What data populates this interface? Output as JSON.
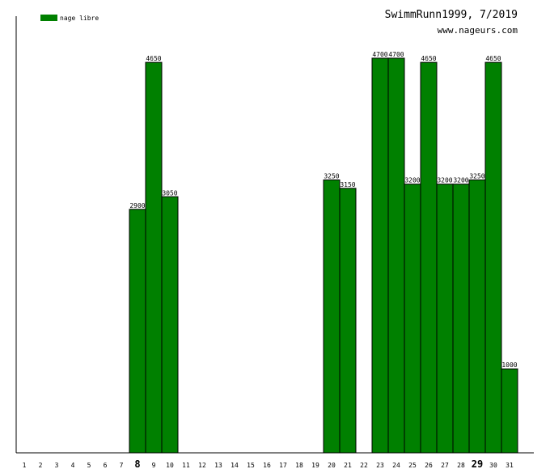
{
  "chart_data": {
    "type": "bar",
    "title": "SwimmRunn1999, 7/2019",
    "subtitle": "www.nageurs.com",
    "legend": {
      "placement": "top-left",
      "entries": [
        {
          "name": "nage libre",
          "color": "#008000"
        }
      ]
    },
    "xlabel": "",
    "ylabel": "",
    "grid": false,
    "ylim": [
      0,
      5200
    ],
    "categories": [
      "1",
      "2",
      "3",
      "4",
      "5",
      "6",
      "7",
      "8",
      "9",
      "10",
      "11",
      "12",
      "13",
      "14",
      "15",
      "16",
      "17",
      "18",
      "19",
      "20",
      "21",
      "22",
      "23",
      "24",
      "25",
      "26",
      "27",
      "28",
      "29",
      "30",
      "31"
    ],
    "highlighted_categories": [
      "8",
      "29"
    ],
    "series": [
      {
        "name": "nage libre",
        "color": "#008000",
        "values": [
          0,
          0,
          0,
          0,
          0,
          0,
          0,
          2900,
          4650,
          3050,
          0,
          0,
          0,
          0,
          0,
          0,
          0,
          0,
          0,
          3250,
          3150,
          0,
          4700,
          4700,
          3200,
          4650,
          3200,
          3200,
          3250,
          4650,
          1000
        ]
      }
    ]
  }
}
